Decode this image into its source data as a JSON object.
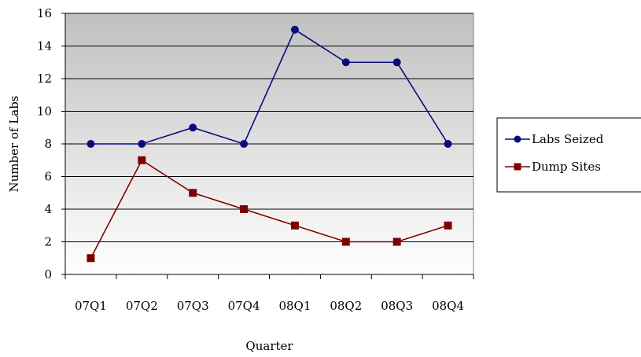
{
  "chart_data": {
    "type": "line",
    "title": "",
    "xlabel": "Quarter",
    "ylabel": "Number of Labs",
    "categories": [
      "07Q1",
      "07Q2",
      "07Q3",
      "07Q4",
      "08Q1",
      "08Q2",
      "08Q3",
      "08Q4"
    ],
    "ylim": [
      0,
      16
    ],
    "yticks": [
      "0",
      "2",
      "4",
      "6",
      "8",
      "10",
      "12",
      "14",
      "16"
    ],
    "grid": true,
    "legend_position": "right",
    "series": [
      {
        "name": "Labs Seized",
        "values": [
          8,
          8,
          9,
          8,
          15,
          13,
          13,
          8
        ],
        "color": "#0a0a80",
        "marker": "circle"
      },
      {
        "name": "Dump Sites",
        "values": [
          1,
          7,
          5,
          4,
          3,
          2,
          2,
          3
        ],
        "color": "#7f0000",
        "marker": "square"
      }
    ]
  }
}
